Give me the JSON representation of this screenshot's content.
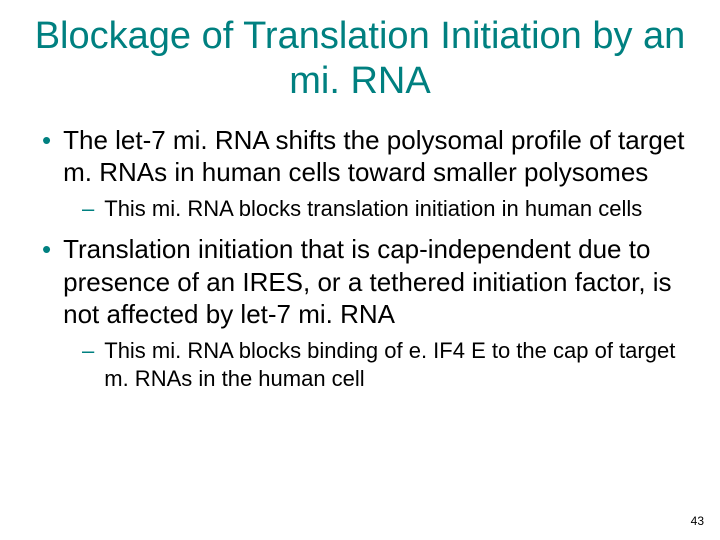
{
  "title": "Blockage of Translation Initiation by an mi. RNA",
  "bullets": [
    {
      "level": 1,
      "text": "The let-7 mi. RNA shifts the polysomal profile of target m. RNAs in human cells toward smaller polysomes"
    },
    {
      "level": 2,
      "text": "This mi. RNA blocks translation initiation in human cells"
    },
    {
      "level": 1,
      "text": "Translation initiation that is cap-independent due to presence of an IRES, or a tethered initiation factor, is not affected by let-7 mi. RNA"
    },
    {
      "level": 2,
      "text": "This mi. RNA blocks binding of e. IF4 E to the cap of target m. RNAs in the human cell"
    }
  ],
  "page_number": "43",
  "colors": {
    "accent": "#008080",
    "text": "#000000",
    "background": "#ffffff"
  },
  "typography": {
    "title_fontsize": 38,
    "l1_fontsize": 26,
    "l2_fontsize": 22,
    "pagenum_fontsize": 12,
    "font_family": "Arial"
  }
}
